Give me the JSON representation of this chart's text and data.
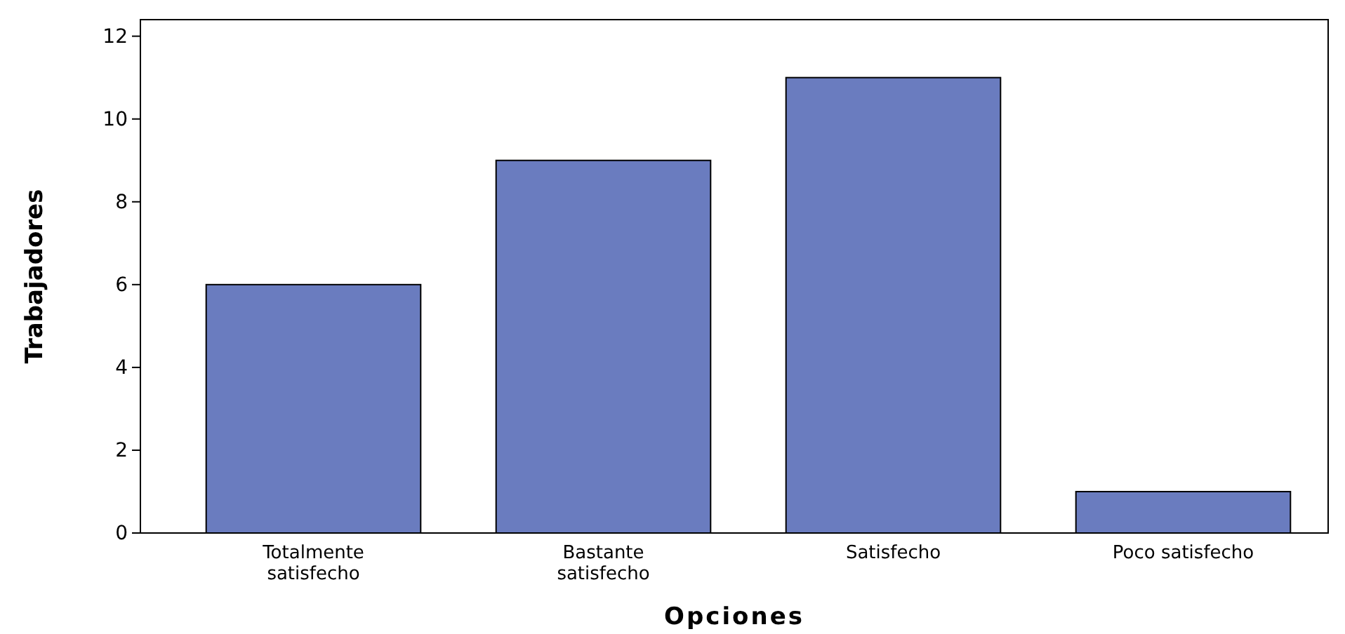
{
  "chart_data": {
    "type": "bar",
    "xlabel": "Opciones",
    "ylabel": "Trabajadores",
    "categories": [
      "Totalmente satisfecho",
      "Bastante satisfecho",
      "Satisfecho",
      "Poco satisfecho"
    ],
    "values": [
      6,
      9,
      11,
      1
    ],
    "color": "#6a7cbf",
    "ylim": [
      0,
      12.4
    ],
    "yticks": [
      0,
      2,
      4,
      6,
      8,
      10,
      12
    ],
    "grid": false
  }
}
